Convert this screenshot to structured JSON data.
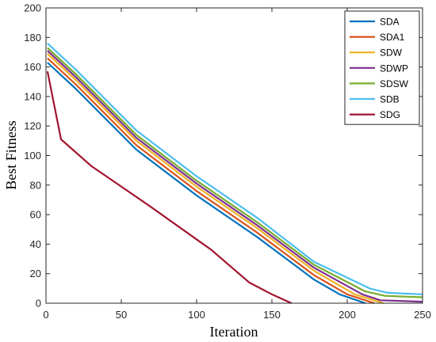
{
  "chart_data": {
    "type": "line",
    "title": "",
    "xlabel": "Iteration",
    "ylabel": "Best Fitness",
    "xlim": [
      0,
      250
    ],
    "ylim": [
      0,
      200
    ],
    "xticks": [
      0,
      50,
      100,
      150,
      200,
      250
    ],
    "yticks": [
      0,
      20,
      40,
      60,
      80,
      100,
      120,
      140,
      160,
      180,
      200
    ],
    "grid": false,
    "legend_position": "top-right",
    "series": [
      {
        "name": "SDA",
        "color": "#0072BD",
        "points": [
          [
            1,
            163
          ],
          [
            20,
            145
          ],
          [
            60,
            104
          ],
          [
            100,
            73
          ],
          [
            140,
            45
          ],
          [
            178,
            16
          ],
          [
            195,
            6
          ],
          [
            212,
            0
          ]
        ]
      },
      {
        "name": "SDA1",
        "color": "#D95319",
        "points": [
          [
            1,
            166
          ],
          [
            20,
            148
          ],
          [
            60,
            107
          ],
          [
            100,
            76
          ],
          [
            140,
            48
          ],
          [
            178,
            19
          ],
          [
            200,
            6
          ],
          [
            218,
            0
          ]
        ]
      },
      {
        "name": "SDW",
        "color": "#EDB120",
        "points": [
          [
            1,
            169
          ],
          [
            20,
            151
          ],
          [
            60,
            110
          ],
          [
            100,
            79
          ],
          [
            140,
            51
          ],
          [
            178,
            22
          ],
          [
            205,
            6
          ],
          [
            224,
            0
          ]
        ]
      },
      {
        "name": "SDWP",
        "color": "#7E2F8E",
        "points": [
          [
            1,
            171
          ],
          [
            20,
            153
          ],
          [
            60,
            112
          ],
          [
            100,
            81
          ],
          [
            140,
            53
          ],
          [
            178,
            24
          ],
          [
            210,
            6
          ],
          [
            222,
            2
          ],
          [
            250,
            1
          ]
        ]
      },
      {
        "name": "SDSW",
        "color": "#77AC30",
        "points": [
          [
            1,
            173
          ],
          [
            20,
            155
          ],
          [
            60,
            114
          ],
          [
            100,
            83
          ],
          [
            140,
            55
          ],
          [
            178,
            26
          ],
          [
            212,
            8
          ],
          [
            225,
            5
          ],
          [
            250,
            4
          ]
        ]
      },
      {
        "name": "SDB",
        "color": "#4DBEEE",
        "points": [
          [
            1,
            176
          ],
          [
            20,
            158
          ],
          [
            60,
            117
          ],
          [
            100,
            86
          ],
          [
            140,
            58
          ],
          [
            178,
            28
          ],
          [
            215,
            10
          ],
          [
            227,
            7
          ],
          [
            250,
            6
          ]
        ]
      },
      {
        "name": "SDG",
        "color": "#A2142F",
        "points": [
          [
            1,
            157
          ],
          [
            10,
            111
          ],
          [
            30,
            93
          ],
          [
            70,
            65
          ],
          [
            110,
            36
          ],
          [
            135,
            14
          ],
          [
            150,
            6
          ],
          [
            163,
            0
          ]
        ]
      }
    ]
  }
}
